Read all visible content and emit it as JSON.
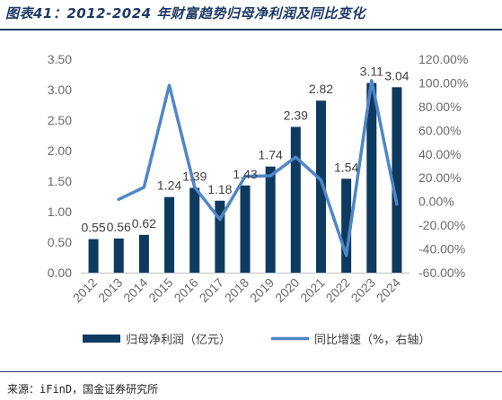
{
  "title": "图表41：2012-2024 年财富趋势归母净利润及同比变化",
  "source": "来源：iFinD，国金证券研究所",
  "colors": {
    "bar": "#0f3a5f",
    "line": "#4f86c6",
    "title": "#1e3a66"
  },
  "chart_data": {
    "type": "bar+line",
    "categories": [
      "2012",
      "2013",
      "2014",
      "2015",
      "2016",
      "2017",
      "2018",
      "2019",
      "2020",
      "2021",
      "2022",
      "2023",
      "2024"
    ],
    "series": [
      {
        "name": "归母净利润（亿元）",
        "type": "bar",
        "axis": "left",
        "values": [
          0.55,
          0.56,
          0.62,
          1.24,
          1.39,
          1.18,
          1.43,
          1.74,
          2.39,
          2.82,
          1.54,
          3.11,
          3.04
        ],
        "labels": [
          "0.55",
          "0.56",
          "0.62",
          "1.24",
          "1.39",
          "1.18",
          "1.43",
          "1.74",
          "2.39",
          "2.82",
          "1.54",
          "3.11",
          "3.04"
        ]
      },
      {
        "name": "同比增速（%，右轴）",
        "type": "line",
        "axis": "right",
        "values": [
          null,
          1.8,
          12.0,
          98.0,
          12.1,
          -15.1,
          21.2,
          21.7,
          37.4,
          18.0,
          -45.4,
          101.9,
          -2.3
        ]
      }
    ],
    "ylim_left": [
      0,
      3.5
    ],
    "yticks_left": [
      "0.00",
      "0.50",
      "1.00",
      "1.50",
      "2.00",
      "2.50",
      "3.00",
      "3.50"
    ],
    "ylim_right": [
      -60,
      120
    ],
    "yticks_right": [
      "-60.00%",
      "-40.00%",
      "-20.00%",
      "0.00%",
      "20.00%",
      "40.00%",
      "60.00%",
      "80.00%",
      "100.00%",
      "120.00%"
    ],
    "grid": false,
    "legend_position": "bottom"
  }
}
